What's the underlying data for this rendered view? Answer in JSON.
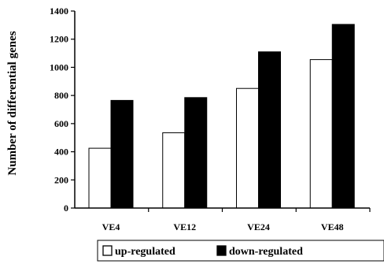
{
  "chart_data": {
    "type": "bar",
    "title": "",
    "xlabel": "",
    "ylabel": "Number of differential genes",
    "categories": [
      "VE4",
      "VE12",
      "VE24",
      "VE48"
    ],
    "series": [
      {
        "name": "up-regulated",
        "values": [
          425,
          535,
          850,
          1055
        ],
        "color": "#ffffff"
      },
      {
        "name": "down-regulated",
        "values": [
          765,
          785,
          1110,
          1305
        ],
        "color": "#000000"
      }
    ],
    "ylim": [
      0,
      1400
    ],
    "yticks": [
      0,
      200,
      400,
      600,
      800,
      1000,
      1200,
      1400
    ],
    "grid": false,
    "legend": "bottom"
  }
}
